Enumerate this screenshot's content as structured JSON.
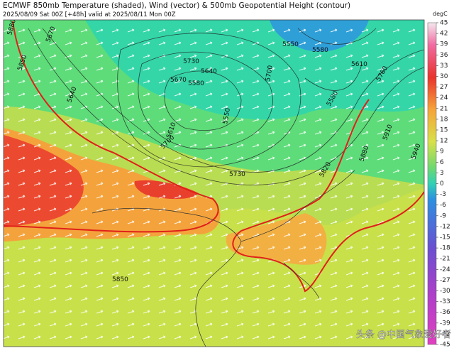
{
  "header": {
    "title": "ECMWF 850mb Temperature (shaded), Wind (vector) & 500mb Geopotential Height (contour)",
    "subtitle": "2025/08/09 Sat 00Z [+48h] valid at 2025/08/11 Mon 00Z"
  },
  "colorbar": {
    "unit": "degC",
    "ticks": [
      45,
      42,
      39,
      36,
      33,
      30,
      27,
      24,
      21,
      18,
      15,
      12,
      9,
      6,
      3,
      0,
      -3,
      -6,
      -9,
      -12,
      -15,
      -18,
      -21,
      -24,
      -27,
      -30,
      -33,
      -36,
      -39,
      -42,
      -45
    ]
  },
  "contour_labels": [
    "5880",
    "5850",
    "5670",
    "5730",
    "5640",
    "5580",
    "5550",
    "5580",
    "5610",
    "5760",
    "5700",
    "5670",
    "5640",
    "5580",
    "5550",
    "5610",
    "5700",
    "5730",
    "5820",
    "5880",
    "5910",
    "5940",
    "5850"
  ],
  "watermark": "头条 @中国气象爱好者"
}
